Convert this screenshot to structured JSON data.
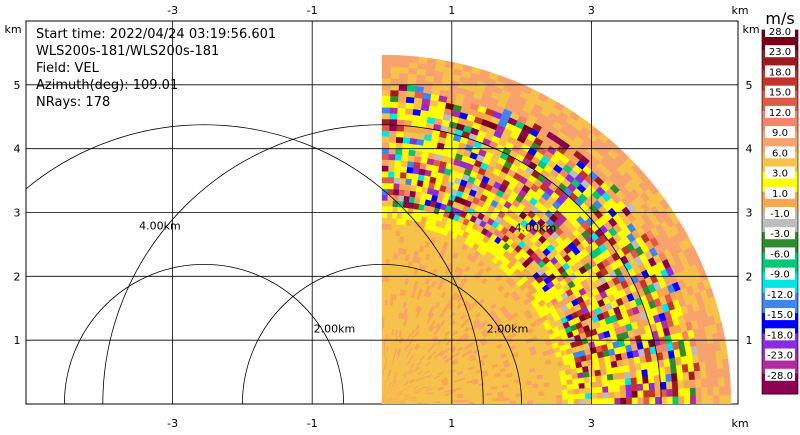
{
  "chart_data": {
    "type": "heatmap",
    "plot_kind": "radar-ppi-sector",
    "info": {
      "start_time": "Start time: 2022/04/24 03:19:56.601",
      "instrument": "WLS200s-181/WLS200s-181",
      "field": "Field: VEL",
      "azimuth": "Azimuth(deg): 109.01",
      "nrays": "NRays: 178"
    },
    "x_unit": "km",
    "y_unit": "km",
    "x_ticks": [
      "-3",
      "-1",
      "1",
      "3"
    ],
    "y_ticks": [
      "1",
      "2",
      "3",
      "4",
      "5"
    ],
    "xlim": [
      -5.1,
      5.1
    ],
    "ylim": [
      0,
      6
    ],
    "x_tick_values": [
      -3,
      -1,
      1,
      3
    ],
    "y_tick_values": [
      1,
      2,
      3,
      4,
      5
    ],
    "grid": true,
    "range_rings": [
      {
        "label": "2.00km",
        "radius": 2.0
      },
      {
        "label": "4.00km",
        "radius": 4.0
      }
    ],
    "radar_origin": [
      0,
      0
    ],
    "sector_deg": [
      0,
      90
    ],
    "max_range_km": 5.0,
    "colorbar": {
      "unit": "m/s",
      "labels": [
        "28.0",
        "23.0",
        "18.0",
        "15.0",
        "12.0",
        "9.0",
        "6.0",
        "3.0",
        "1.0",
        "-1.0",
        "-3.0",
        "-6.0",
        "-9.0",
        "-12.0",
        "-15.0",
        "-18.0",
        "-23.0",
        "-28.0"
      ],
      "colors": [
        "#7a0019",
        "#9e1a1e",
        "#c4332a",
        "#e05a45",
        "#f4856a",
        "#f8a26d",
        "#f6c24a",
        "#ffff00",
        "#f7a84f",
        "#bdbdbd",
        "#2e8b2e",
        "#00c878",
        "#00e5e5",
        "#3e85f0",
        "#0000ff",
        "#8a2be2",
        "#b02aa2",
        "#8b0050"
      ]
    },
    "field_values": {
      "dominant_near_origin": 6.0,
      "dominant_outer": 3.0,
      "noisy_band_radius_km": [
        2.8,
        4.6
      ],
      "far_edge_value": 9.0
    }
  }
}
